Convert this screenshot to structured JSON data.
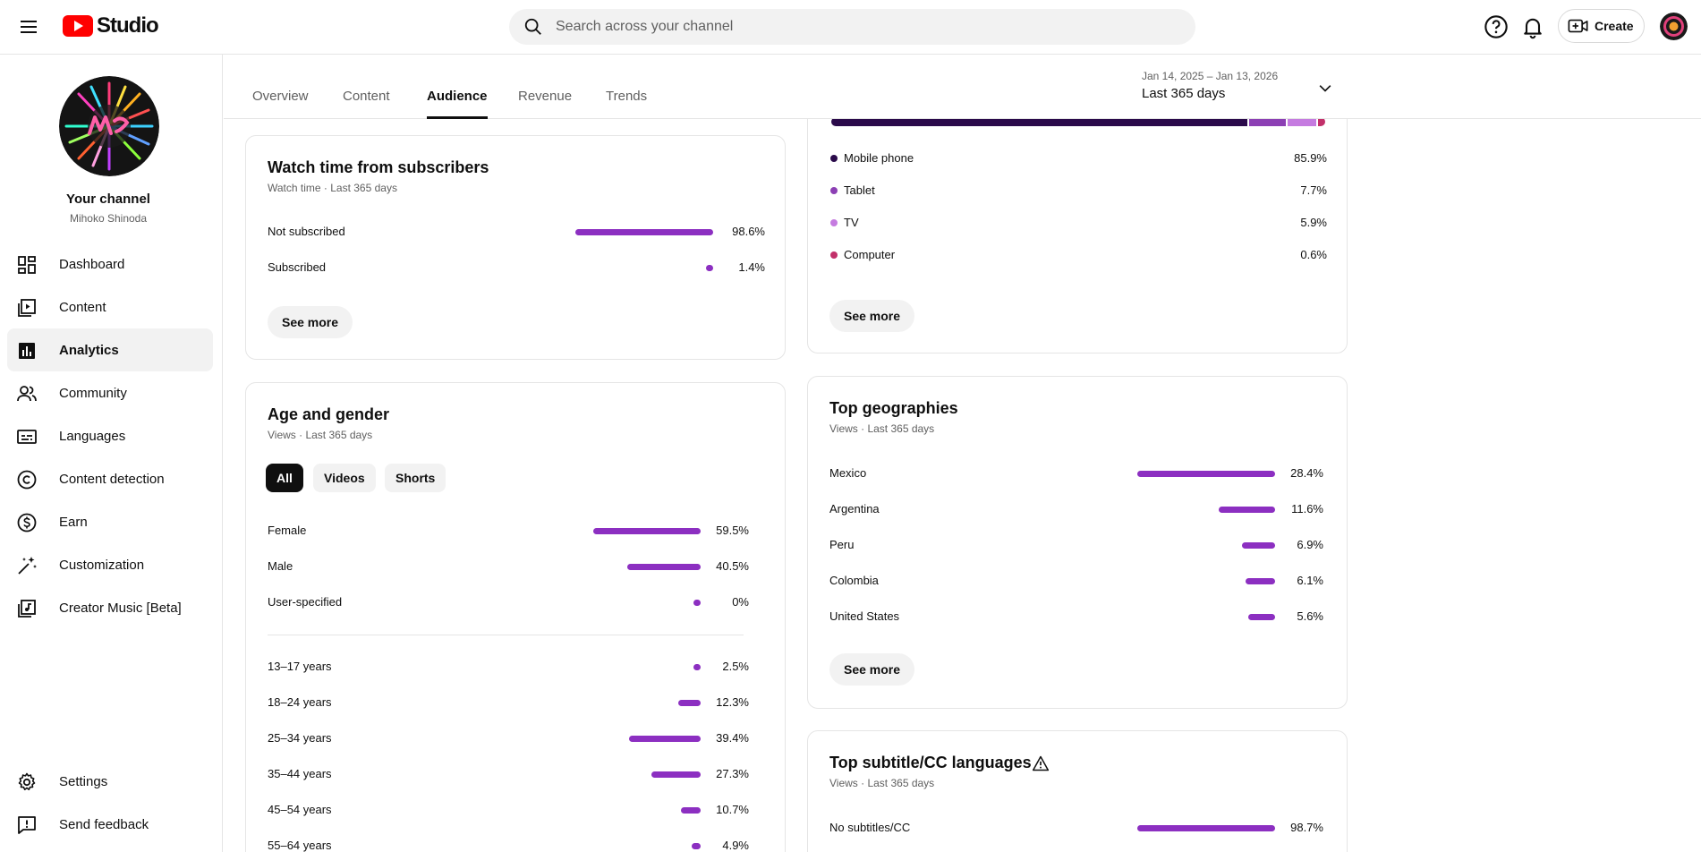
{
  "app": {
    "logo_text": "Studio"
  },
  "search": {
    "placeholder": "Search across your channel"
  },
  "header": {
    "create_label": "Create"
  },
  "colors": {
    "bar": "#8c2fc1",
    "mobile": "#2a0a4a",
    "tablet": "#8c3fb4",
    "tv": "#c57be0",
    "computer": "#c2306a"
  },
  "channel": {
    "title": "Your channel",
    "name": "Mihoko Shinoda"
  },
  "sidebar": {
    "items": [
      {
        "label": "Dashboard",
        "icon": "dashboard-icon"
      },
      {
        "label": "Content",
        "icon": "content-icon"
      },
      {
        "label": "Analytics",
        "icon": "analytics-icon",
        "active": true
      },
      {
        "label": "Community",
        "icon": "community-icon"
      },
      {
        "label": "Languages",
        "icon": "languages-icon"
      },
      {
        "label": "Content detection",
        "icon": "copyright-icon"
      },
      {
        "label": "Earn",
        "icon": "earn-icon"
      },
      {
        "label": "Customization",
        "icon": "customization-icon"
      },
      {
        "label": "Creator Music [Beta]",
        "icon": "music-icon"
      }
    ],
    "bottom": [
      {
        "label": "Settings",
        "icon": "gear-icon"
      },
      {
        "label": "Send feedback",
        "icon": "feedback-icon"
      }
    ]
  },
  "tabs": [
    {
      "label": "Overview"
    },
    {
      "label": "Content"
    },
    {
      "label": "Audience",
      "active": true
    },
    {
      "label": "Revenue"
    },
    {
      "label": "Trends"
    }
  ],
  "date_range": {
    "dates": "Jan 14, 2025 – Jan 13, 2026",
    "label": "Last 365 days"
  },
  "subscribers_card": {
    "title": "Watch time from subscribers",
    "subtitle": "Watch time · Last 365 days",
    "rows": [
      {
        "label": "Not subscribed",
        "value": "98.6%",
        "fraction": 0.986
      },
      {
        "label": "Subscribed",
        "value": "1.4%",
        "fraction": 0.014
      }
    ],
    "see_more": "See more"
  },
  "device_card": {
    "rows": [
      {
        "label": "Mobile phone",
        "value": "85.9%",
        "fraction": 0.859
      },
      {
        "label": "Tablet",
        "value": "7.7%",
        "fraction": 0.077
      },
      {
        "label": "TV",
        "value": "5.9%",
        "fraction": 0.059
      },
      {
        "label": "Computer",
        "value": "0.6%",
        "fraction": 0.006
      }
    ],
    "see_more": "See more"
  },
  "age_gender_card": {
    "title": "Age and gender",
    "subtitle": "Views · Last 365 days",
    "chips": [
      {
        "label": "All",
        "selected": true
      },
      {
        "label": "Videos"
      },
      {
        "label": "Shorts"
      }
    ],
    "gender": [
      {
        "label": "Female",
        "value": "59.5%",
        "fraction": 0.595
      },
      {
        "label": "Male",
        "value": "40.5%",
        "fraction": 0.405
      },
      {
        "label": "User-specified",
        "value": "0%",
        "fraction": 0
      }
    ],
    "age": [
      {
        "label": "13–17 years",
        "value": "2.5%",
        "fraction": 0.025
      },
      {
        "label": "18–24 years",
        "value": "12.3%",
        "fraction": 0.123
      },
      {
        "label": "25–34 years",
        "value": "39.4%",
        "fraction": 0.394
      },
      {
        "label": "35–44 years",
        "value": "27.3%",
        "fraction": 0.273
      },
      {
        "label": "45–54 years",
        "value": "10.7%",
        "fraction": 0.107
      },
      {
        "label": "55–64 years",
        "value": "4.9%",
        "fraction": 0.049
      }
    ]
  },
  "geo_card": {
    "title": "Top geographies",
    "subtitle": "Views · Last 365 days",
    "rows": [
      {
        "label": "Mexico",
        "value": "28.4%",
        "fraction": 0.284
      },
      {
        "label": "Argentina",
        "value": "11.6%",
        "fraction": 0.116
      },
      {
        "label": "Peru",
        "value": "6.9%",
        "fraction": 0.069
      },
      {
        "label": "Colombia",
        "value": "6.1%",
        "fraction": 0.061
      },
      {
        "label": "United States",
        "value": "5.6%",
        "fraction": 0.056
      }
    ],
    "see_more": "See more"
  },
  "subtitle_card": {
    "title": "Top subtitle/CC languages",
    "subtitle": "Views · Last 365 days",
    "rows": [
      {
        "label": "No subtitles/CC",
        "value": "98.7%",
        "fraction": 0.987
      }
    ]
  }
}
